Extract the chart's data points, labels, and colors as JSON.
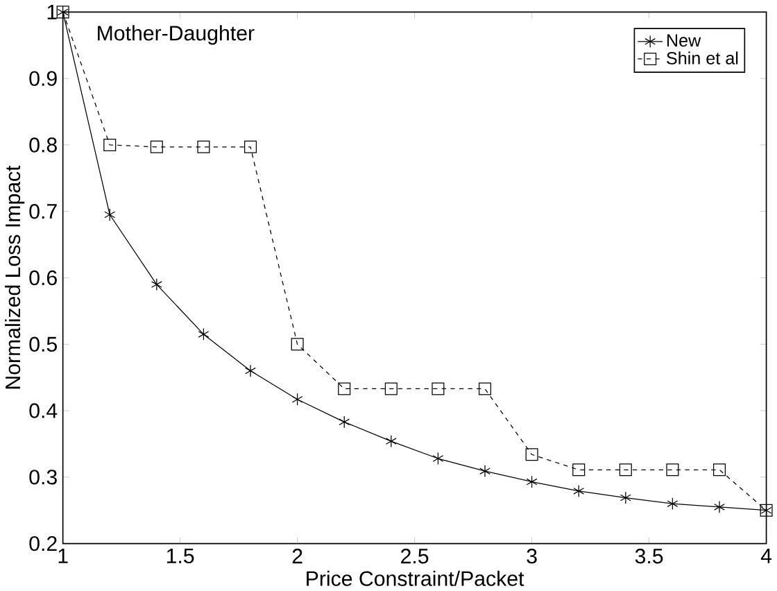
{
  "chart_data": {
    "type": "line",
    "xlabel": "Price Constraint/Packet",
    "ylabel": "Normalized Loss Impact",
    "annotations": [
      "Mother-Daughter"
    ],
    "x": [
      1,
      1.2,
      1.4,
      1.6,
      1.8,
      2,
      2.2,
      2.4,
      2.6,
      2.8,
      3,
      3.2,
      3.4,
      3.6,
      3.8,
      4
    ],
    "series": [
      {
        "name": "New",
        "color": "#000000",
        "marker": "cross",
        "line_style": "solid",
        "values": [
          1.0,
          0.695,
          0.59,
          0.515,
          0.46,
          0.417,
          0.383,
          0.354,
          0.328,
          0.309,
          0.293,
          0.279,
          0.269,
          0.26,
          0.255,
          0.25
        ]
      },
      {
        "name": "Shin et al",
        "color": "#000000",
        "marker": "square",
        "line_style": "dashed",
        "values": [
          1.0,
          0.8,
          0.797,
          0.797,
          0.797,
          0.5,
          0.433,
          0.433,
          0.433,
          0.433,
          0.334,
          0.311,
          0.311,
          0.311,
          0.311,
          0.25
        ]
      }
    ],
    "xlim": [
      1,
      4
    ],
    "ylim": [
      0.2,
      1
    ],
    "xticks": [
      1,
      1.5,
      2,
      2.5,
      3,
      3.5,
      4
    ],
    "yticks": [
      0.2,
      0.3,
      0.4,
      0.5,
      0.6,
      0.7,
      0.8,
      0.9,
      1
    ],
    "grid": false,
    "legend": "top right"
  }
}
